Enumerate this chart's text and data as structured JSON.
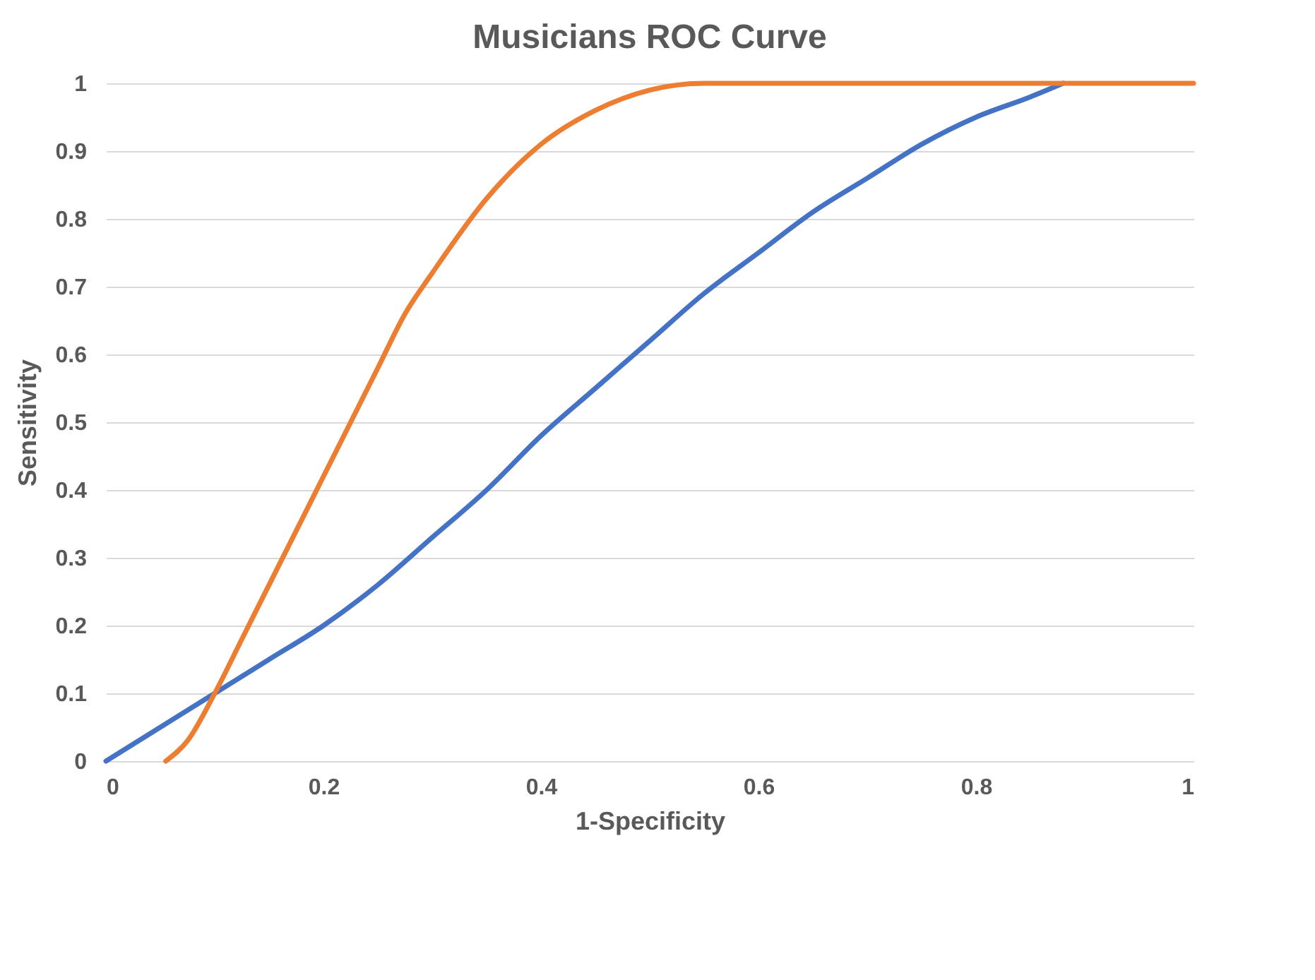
{
  "chart_data": {
    "type": "line",
    "title": "Musicians ROC Curve",
    "xlabel": "1-Specificity",
    "ylabel": "Sensitivity",
    "xlim": [
      0,
      1
    ],
    "ylim": [
      0,
      1
    ],
    "xticks": [
      0,
      0.2,
      0.4,
      0.6,
      0.8,
      1
    ],
    "yticks": [
      0,
      0.1,
      0.2,
      0.3,
      0.4,
      0.5,
      0.6,
      0.7,
      0.8,
      0.9,
      1
    ],
    "grid": "y",
    "legend": false,
    "marker": "none",
    "line_style": "solid",
    "series": [
      {
        "color": "#4472c4",
        "x": [
          0,
          0.05,
          0.1,
          0.15,
          0.2,
          0.25,
          0.3,
          0.35,
          0.4,
          0.45,
          0.5,
          0.55,
          0.6,
          0.65,
          0.7,
          0.75,
          0.8,
          0.85,
          0.88
        ],
        "values": [
          0,
          0.05,
          0.1,
          0.15,
          0.2,
          0.26,
          0.33,
          0.4,
          0.48,
          0.55,
          0.62,
          0.69,
          0.75,
          0.81,
          0.86,
          0.91,
          0.95,
          0.98,
          1
        ]
      },
      {
        "color": "#ed7d31",
        "x": [
          0.055,
          0.075,
          0.1,
          0.125,
          0.15,
          0.175,
          0.2,
          0.225,
          0.25,
          0.275,
          0.3,
          0.35,
          0.4,
          0.45,
          0.5,
          0.55,
          0.6,
          0.7,
          0.8,
          0.9,
          1
        ],
        "values": [
          0,
          0.03,
          0.1,
          0.18,
          0.26,
          0.34,
          0.42,
          0.5,
          0.58,
          0.66,
          0.72,
          0.83,
          0.91,
          0.96,
          0.99,
          1,
          1,
          1,
          1,
          1,
          1
        ]
      }
    ]
  }
}
